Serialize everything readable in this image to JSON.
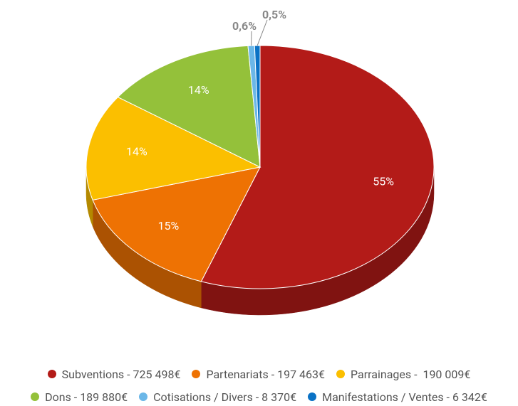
{
  "chart_data": {
    "type": "pie",
    "categories": [
      "Subventions - 725 498€",
      "Partenariats - 197 463€",
      "Parrainages -  190 009€",
      "Dons - 189 880€",
      "Cotisations / Divers - 8 370€",
      "Manifestations / Ventes - 6 342€"
    ],
    "values": [
      55,
      15,
      14,
      14,
      0.6,
      0.5
    ],
    "value_labels": [
      "55%",
      "15%",
      "14%",
      "14%",
      "0,6%",
      "0,5%"
    ],
    "colors": [
      "#b31b18",
      "#ee7203",
      "#fbbf00",
      "#94c13a",
      "#6bb7e8",
      "#0a72c5"
    ],
    "legend": "bottom"
  }
}
